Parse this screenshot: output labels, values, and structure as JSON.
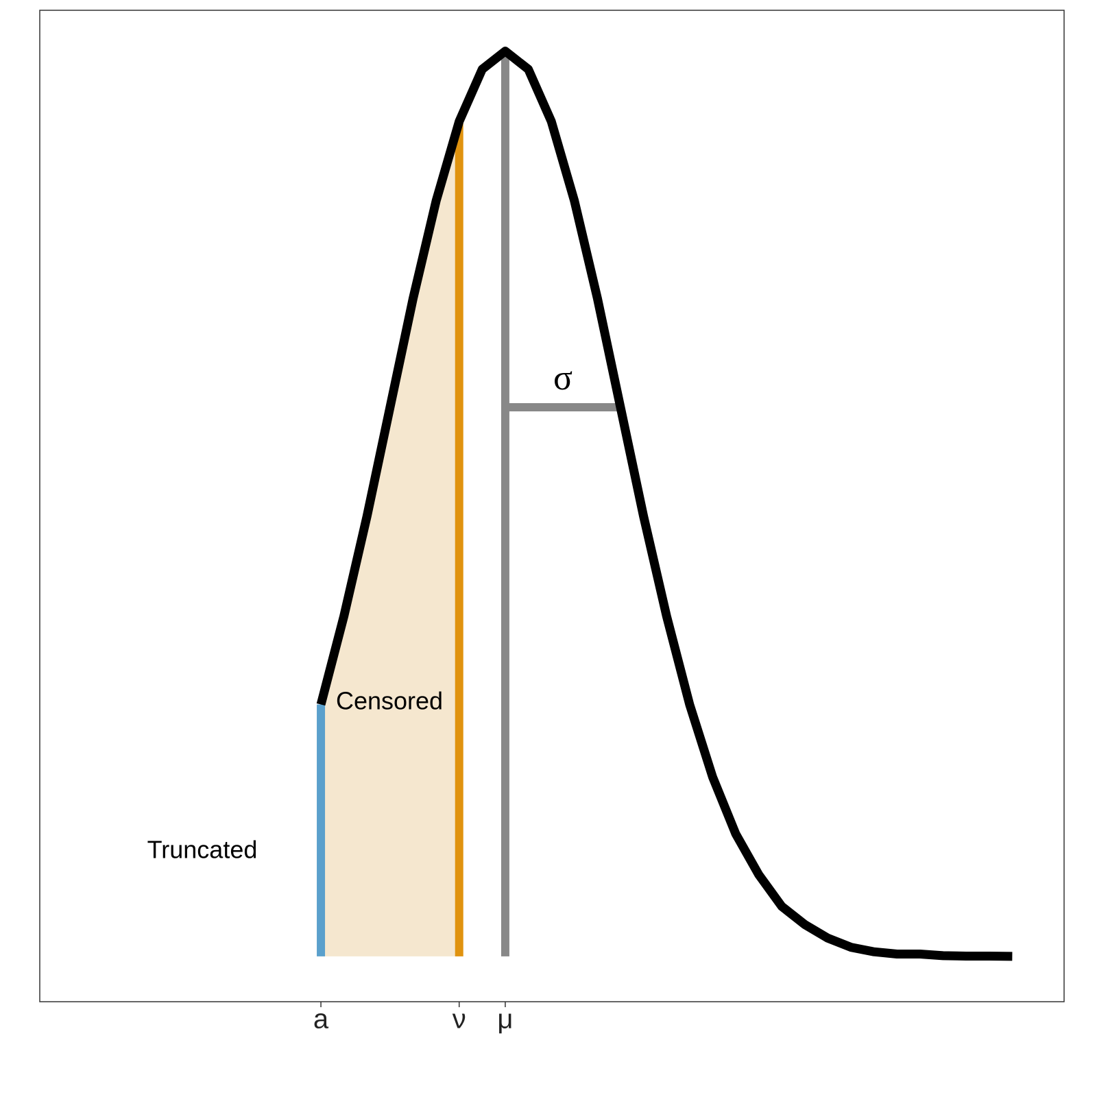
{
  "chart_data": {
    "type": "line",
    "x": [
      -1.6,
      -1.4,
      -1.2,
      -1.0,
      -0.8,
      -0.6,
      -0.4,
      -0.2,
      0,
      0.2,
      0.4,
      0.6,
      0.8,
      1.0,
      1.2,
      1.4,
      1.6,
      1.8,
      2.0,
      2.2,
      2.4,
      2.6,
      2.8,
      3.0,
      3.2,
      3.4,
      3.6,
      3.8,
      4.0,
      4.2,
      4.4
    ],
    "values": [
      0.111,
      0.15,
      0.194,
      0.242,
      0.29,
      0.333,
      0.368,
      0.391,
      0.399,
      0.391,
      0.368,
      0.333,
      0.29,
      0.242,
      0.194,
      0.15,
      0.111,
      0.079,
      0.054,
      0.036,
      0.022,
      0.014,
      0.008,
      0.004,
      0.002,
      0.001,
      0.001,
      0.0003,
      0.0001,
      0.0001,
      0.0
    ],
    "color": "#000000",
    "xlim": [
      -4.04,
      4.85
    ],
    "ylim": [
      -0.02,
      0.417
    ],
    "xticks": [
      {
        "value": -1.6,
        "label": "a"
      },
      {
        "value": -0.4,
        "label": "ν"
      },
      {
        "value": 0,
        "label": "μ"
      }
    ],
    "sigma": {
      "value": 1,
      "label": "σ"
    },
    "truncation_color": "#5aa0cc",
    "censor_color": "#e0930f",
    "censor_fill": "#f5e7cf",
    "mean_color": "#888888",
    "annotations": [
      "Truncated",
      "Censored"
    ]
  }
}
